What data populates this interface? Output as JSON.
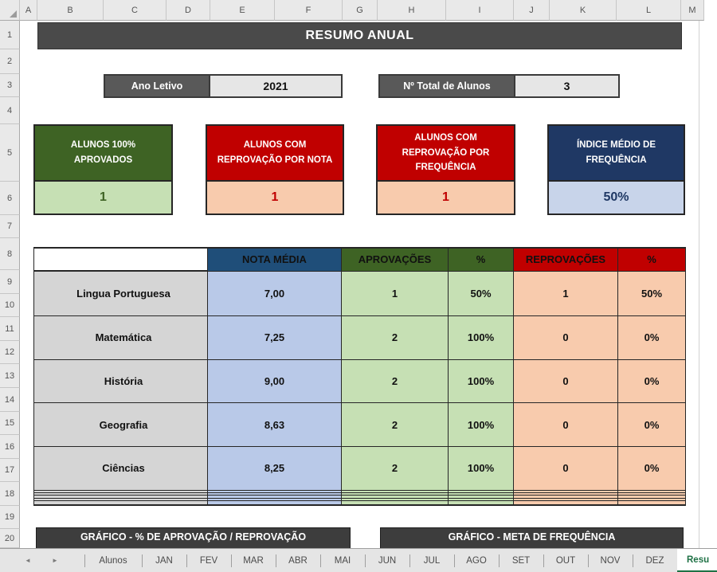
{
  "title": "RESUMO ANUAL",
  "grid": {
    "column_labels": [
      "A",
      "B",
      "C",
      "D",
      "E",
      "F",
      "G",
      "H",
      "I",
      "J",
      "K",
      "L",
      "M"
    ],
    "row_labels": [
      "1",
      "2",
      "3",
      "4",
      "5",
      "6",
      "7",
      "8",
      "9",
      "10",
      "11",
      "12",
      "13",
      "14",
      "15",
      "16",
      "17",
      "18",
      "19",
      "20"
    ]
  },
  "info_boxes": {
    "ano_letivo": {
      "label": "Ano Letivo",
      "value": "2021"
    },
    "total_alunos": {
      "label": "Nº Total de Alunos",
      "value": "3"
    }
  },
  "summary_cards": [
    {
      "label": "ALUNOS 100% APROVADOS",
      "value": "1",
      "theme": "green"
    },
    {
      "label": "ALUNOS COM REPROVAÇÃO POR NOTA",
      "value": "1",
      "theme": "red"
    },
    {
      "label": "ALUNOS COM REPROVAÇÃO POR FREQUÊNCIA",
      "value": "1",
      "theme": "red"
    },
    {
      "label": "ÍNDICE MÉDIO DE FREQUÊNCIA",
      "value": "50%",
      "theme": "blue"
    }
  ],
  "results_table": {
    "column_headers": [
      "NOTA MÉDIA",
      "APROVAÇÕES",
      "%",
      "REPROVAÇÕES",
      "%"
    ],
    "rows": [
      {
        "subject": "Lingua Portuguesa",
        "values": [
          "7,00",
          "1",
          "50%",
          "1",
          "50%"
        ]
      },
      {
        "subject": "Matemática",
        "values": [
          "7,25",
          "2",
          "100%",
          "0",
          "0%"
        ]
      },
      {
        "subject": "História",
        "values": [
          "9,00",
          "2",
          "100%",
          "0",
          "0%"
        ]
      },
      {
        "subject": "Geografia",
        "values": [
          "8,63",
          "2",
          "100%",
          "0",
          "0%"
        ]
      },
      {
        "subject": "Ciências",
        "values": [
          "8,25",
          "2",
          "100%",
          "0",
          "0%"
        ]
      }
    ],
    "empty_rows": 5
  },
  "chart_sections": [
    {
      "title": "GRÁFICO - % DE APROVAÇÃO / REPROVAÇÃO"
    },
    {
      "title": "GRÁFICO - META DE FREQUÊNCIA"
    }
  ],
  "sheet_tabs": {
    "nav_left_icon": "◄",
    "nav_right_icon": "►",
    "tabs": [
      "Alunos",
      "JAN",
      "FEV",
      "MAR",
      "ABR",
      "MAI",
      "JUN",
      "JUL",
      "AGO",
      "SET",
      "OUT",
      "NOV",
      "DEZ"
    ],
    "active_tab": "Resu"
  },
  "colors": {
    "title_bar": "#4a4a4a",
    "label_dark": "#595959",
    "green_dark": "#3e6324",
    "green_light": "#c6e0b4",
    "red": "#c00000",
    "peach": "#f8cbad",
    "navy": "#1f3864",
    "blue_header": "#1f4e79",
    "blue_light": "#b9c9e8",
    "gray_cell": "#d5d5d5",
    "tab_active_green": "#1e7145"
  }
}
